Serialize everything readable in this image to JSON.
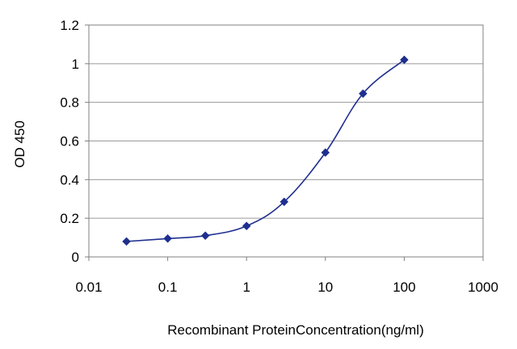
{
  "chart_data": {
    "type": "scatter",
    "title": "",
    "xlabel": "Recombinant ProteinConcentration(ng/ml)",
    "ylabel": "OD 450",
    "xscale": "log",
    "xlim": [
      0.01,
      1000
    ],
    "ylim": [
      0,
      1.2
    ],
    "xticks": [
      0.01,
      0.1,
      1,
      10,
      100,
      1000
    ],
    "xtick_labels": [
      "0.01",
      "0.1",
      "1",
      "10",
      "100",
      "1000"
    ],
    "yticks": [
      0,
      0.2,
      0.4,
      0.6,
      0.8,
      1,
      1.2
    ],
    "ytick_labels": [
      "0",
      "0.2",
      "0.4",
      "0.6",
      "0.8",
      "1",
      "1.2"
    ],
    "grid": "horizontal",
    "legend": "none",
    "series": [
      {
        "x": [
          0.03,
          0.1,
          0.3,
          1,
          3,
          10,
          30,
          100
        ],
        "y": [
          0.08,
          0.095,
          0.11,
          0.16,
          0.285,
          0.54,
          0.845,
          1.02
        ],
        "color": "#1f2f8f",
        "line": "smooth",
        "marker": "diamond"
      }
    ]
  }
}
